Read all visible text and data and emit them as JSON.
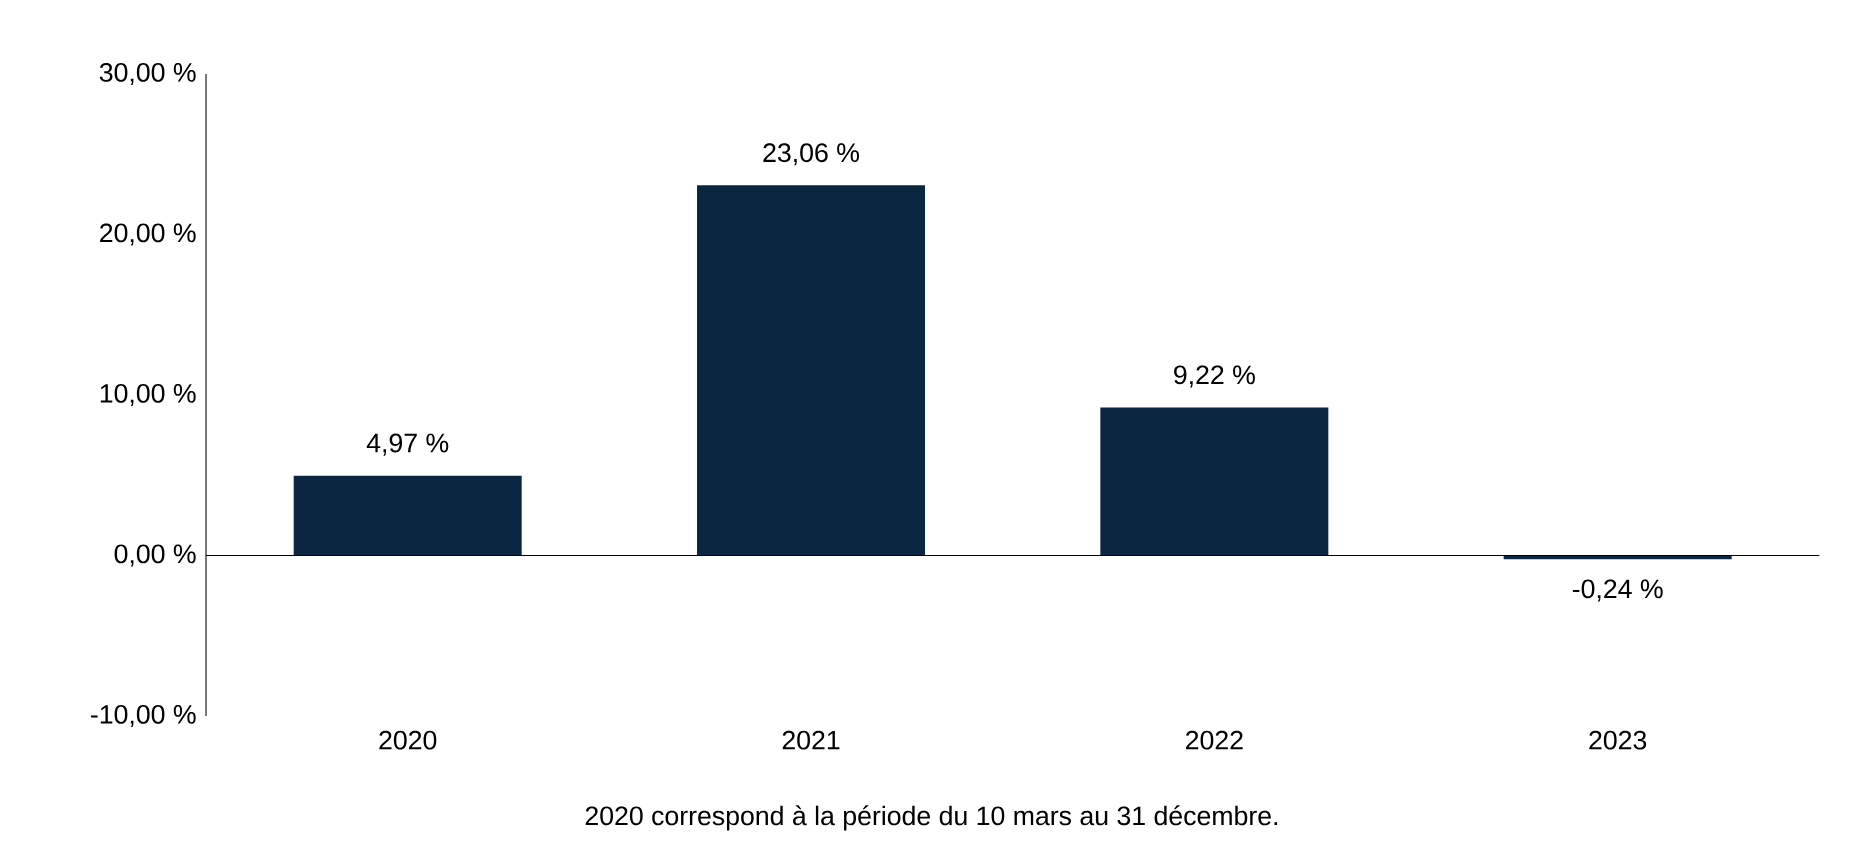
{
  "chart_data": {
    "type": "bar",
    "categories": [
      "2020",
      "2021",
      "2022",
      "2023"
    ],
    "values": [
      4.97,
      23.06,
      9.22,
      -0.24
    ],
    "value_labels": [
      "4,97 %",
      "23,06 %",
      "9,22 %",
      "-0,24 %"
    ],
    "color": "#0b2641",
    "ylim": [
      -10,
      30
    ],
    "yticks": [
      {
        "value": -10,
        "label": "-10,00 %"
      },
      {
        "value": 0,
        "label": "0,00 %"
      },
      {
        "value": 10,
        "label": "10,00 %"
      },
      {
        "value": 20,
        "label": "20,00 %"
      },
      {
        "value": 30,
        "label": "30,00 %"
      }
    ],
    "annotations": [
      "2020 correspond à la période du 10 mars au 31 décembre."
    ]
  }
}
